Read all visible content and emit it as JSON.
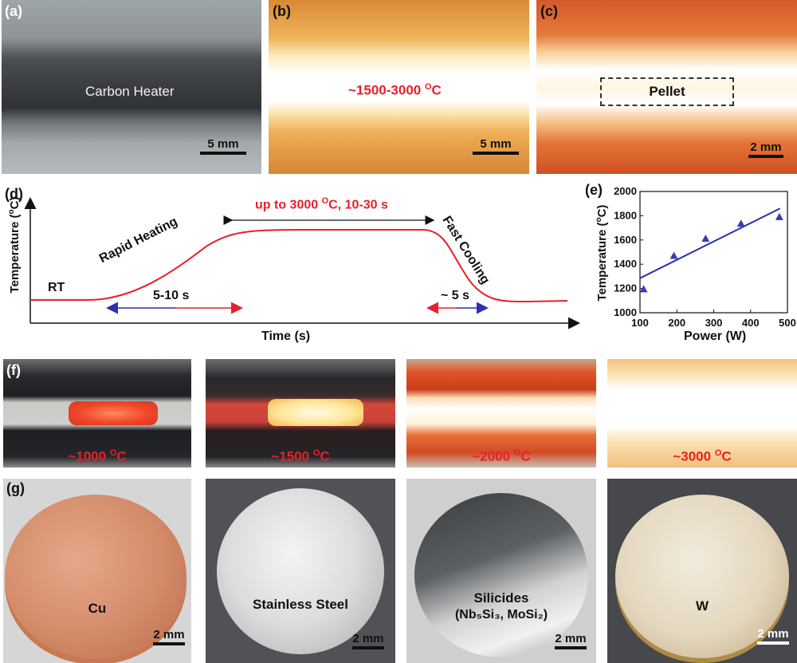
{
  "panel_a": {
    "label": "(a)",
    "caption": "Carbon Heater",
    "scale": "5 mm"
  },
  "panel_b": {
    "label": "(b)",
    "caption": "~1500-3000 °C",
    "caption_main": "~1500-3000 ",
    "caption_sup": "O",
    "caption_unit": "C",
    "scale": "5 mm"
  },
  "panel_c": {
    "label": "(c)",
    "caption": "Pellet",
    "scale": "2 mm"
  },
  "panel_d": {
    "label": "(d)",
    "ylabel": "Temperature (°C)",
    "xlabel": "Time (s)",
    "rt": "RT",
    "rapid": "Rapid Heating",
    "fast": "Fast Cooling",
    "plateau_main": "up to 3000 ",
    "plateau_sup": "O",
    "plateau_rest": "C, 10-30 s",
    "heat_time": "5-10 s",
    "cool_time": "~ 5 s"
  },
  "panel_f": {
    "label": "(f)",
    "temps": [
      {
        "main": "~1000 ",
        "sup": "O",
        "unit": "C"
      },
      {
        "main": "~1500 ",
        "sup": "O",
        "unit": "C"
      },
      {
        "main": "~2000 ",
        "sup": "O",
        "unit": "C"
      },
      {
        "main": "~3000 ",
        "sup": "O",
        "unit": "C"
      }
    ]
  },
  "panel_g": {
    "label": "(g)",
    "samples": [
      "Cu",
      "Stainless Steel",
      "Silicides",
      "W"
    ],
    "silicide_formula": "(Nb₅Si₃, MoSi₂)",
    "scales": [
      "2 mm",
      "2 mm",
      "2 mm",
      "2 mm"
    ]
  },
  "chart_data": {
    "type": "scatter",
    "panel_label": "(e)",
    "title": "",
    "xlabel": "Power (W)",
    "ylabel": "Temperature (°C)",
    "xlim": [
      100,
      500
    ],
    "ylim": [
      1000,
      2000
    ],
    "xticks": [
      100,
      200,
      300,
      400,
      500
    ],
    "yticks": [
      1000,
      1200,
      1400,
      1600,
      1800,
      2000
    ],
    "marker_color": "#3a3ab8",
    "series": [
      {
        "x": [
          110,
          192,
          278,
          374,
          478
        ],
        "y": [
          1195,
          1470,
          1612,
          1735,
          1790
        ]
      }
    ],
    "fit_line": {
      "x": [
        100,
        480
      ],
      "y": [
        1285,
        1860
      ]
    }
  }
}
